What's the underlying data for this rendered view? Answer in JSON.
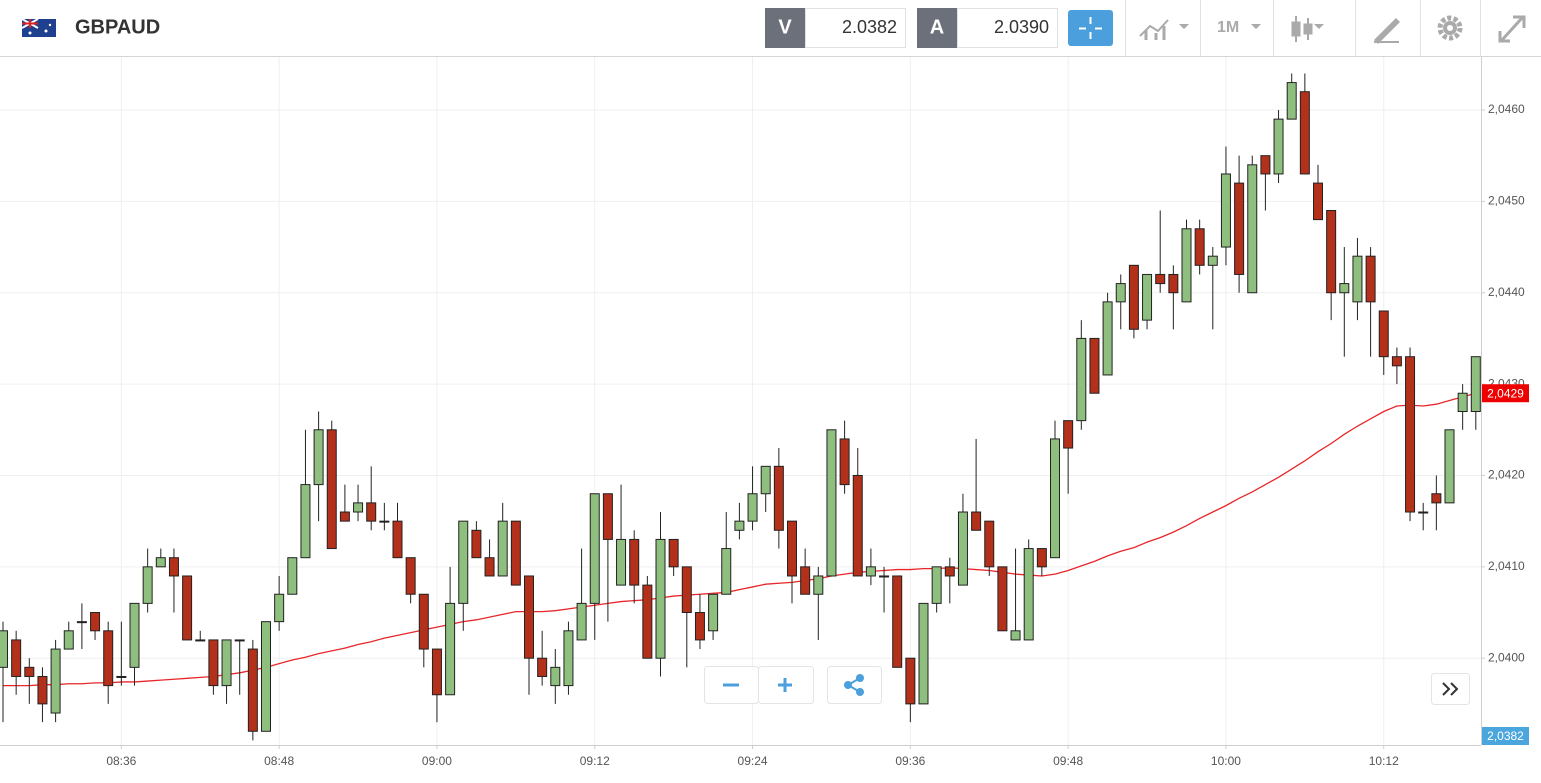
{
  "header": {
    "symbol": "GBPAUD",
    "sell_label": "V",
    "sell_price": "2.0382",
    "buy_label": "A",
    "buy_price": "2.0390",
    "timeframe": "1M"
  },
  "chart_data": {
    "type": "candlestick",
    "categories": [
      null,
      null,
      null,
      null,
      null,
      null,
      null,
      null,
      null,
      "08:36",
      null,
      null,
      null,
      null,
      null,
      null,
      null,
      null,
      null,
      null,
      null,
      "08:48",
      null,
      null,
      null,
      null,
      null,
      null,
      null,
      null,
      null,
      null,
      null,
      "09:00",
      null,
      null,
      null,
      null,
      null,
      null,
      null,
      null,
      null,
      null,
      null,
      "09:12",
      null,
      null,
      null,
      null,
      null,
      null,
      null,
      null,
      null,
      null,
      null,
      "09:24",
      null,
      null,
      null,
      null,
      null,
      null,
      null,
      null,
      null,
      null,
      null,
      "09:36",
      null,
      null,
      null,
      null,
      null,
      null,
      null,
      null,
      null,
      null,
      null,
      "09:48",
      null,
      null,
      null,
      null,
      null,
      null,
      null,
      null,
      null,
      null,
      null,
      "10:00",
      null,
      null,
      null,
      null,
      null,
      null,
      null,
      null,
      null,
      null,
      null,
      "10:12",
      null,
      null,
      null,
      null,
      null,
      null,
      null
    ],
    "open": [
      2.0399,
      2.0402,
      2.0399,
      2.0398,
      2.0394,
      2.0401,
      2.0404,
      2.0405,
      2.0403,
      2.0398,
      2.0399,
      2.0406,
      2.041,
      2.0411,
      2.0409,
      2.0402,
      2.0402,
      2.0397,
      2.0402,
      2.0401,
      2.0392,
      2.0404,
      2.0407,
      2.0411,
      2.0419,
      2.0425,
      2.0416,
      2.0416,
      2.0417,
      2.0415,
      2.0415,
      2.0411,
      2.0407,
      2.0401,
      2.0396,
      2.0406,
      2.0414,
      2.0411,
      2.0409,
      2.0415,
      2.0409,
      2.04,
      2.0397,
      2.0397,
      2.0402,
      2.0406,
      2.0418,
      2.0408,
      2.0413,
      2.0408,
      2.04,
      2.0413,
      2.041,
      2.0405,
      2.0403,
      2.0407,
      2.0414,
      2.0415,
      2.0418,
      2.0421,
      2.0415,
      2.041,
      2.0407,
      2.0409,
      2.0424,
      2.042,
      2.0409,
      2.0409,
      2.0409,
      2.04,
      2.0395,
      2.0406,
      2.041,
      2.0408,
      2.0416,
      2.0415,
      2.041,
      2.0402,
      2.0402,
      2.0412,
      2.0411,
      2.0426,
      2.0426,
      2.0435,
      2.0431,
      2.0439,
      2.0443,
      2.0437,
      2.0442,
      2.0442,
      2.0439,
      2.0447,
      2.0443,
      2.0445,
      2.0452,
      2.044,
      2.0455,
      2.0453,
      2.0459,
      2.0462,
      2.0452,
      2.0449,
      2.044,
      2.0439,
      2.0444,
      2.0438,
      2.0433,
      2.0433,
      2.0416,
      2.0418,
      2.0417,
      2.0427,
      2.0427
    ],
    "high": [
      2.0404,
      2.0403,
      2.04,
      2.0399,
      2.0402,
      2.0404,
      2.0406,
      2.0405,
      2.0404,
      2.0404,
      2.0406,
      2.0412,
      2.0412,
      2.0412,
      2.0409,
      2.0403,
      2.0402,
      2.0402,
      2.0402,
      2.0402,
      2.0404,
      2.0409,
      2.0411,
      2.0425,
      2.0427,
      2.0426,
      2.0419,
      2.0419,
      2.0421,
      2.0417,
      2.0417,
      2.0411,
      2.0407,
      2.0401,
      2.041,
      2.0415,
      2.0415,
      2.0413,
      2.0417,
      2.0415,
      2.0409,
      2.0403,
      2.0401,
      2.0404,
      2.0412,
      2.0418,
      2.0418,
      2.0419,
      2.0414,
      2.0409,
      2.0416,
      2.0413,
      2.041,
      2.0407,
      2.0407,
      2.0416,
      2.0417,
      2.0421,
      2.0421,
      2.0423,
      2.0415,
      2.0412,
      2.041,
      2.0425,
      2.0426,
      2.0423,
      2.0412,
      2.041,
      2.0409,
      2.04,
      2.0406,
      2.041,
      2.0411,
      2.0418,
      2.0424,
      2.0415,
      2.041,
      2.0412,
      2.0413,
      2.0412,
      2.0426,
      2.0426,
      2.0437,
      2.0435,
      2.044,
      2.0442,
      2.0443,
      2.0442,
      2.0449,
      2.0443,
      2.0448,
      2.0448,
      2.0445,
      2.0456,
      2.0455,
      2.0455,
      2.0455,
      2.046,
      2.0464,
      2.0464,
      2.0454,
      2.0449,
      2.0445,
      2.0446,
      2.0445,
      2.0438,
      2.0434,
      2.0434,
      2.0417,
      2.042,
      2.0425,
      2.043,
      2.0433
    ],
    "low": [
      2.0393,
      2.0396,
      2.0395,
      2.0393,
      2.0393,
      2.0401,
      2.0401,
      2.0402,
      2.0395,
      2.0397,
      2.0397,
      2.0405,
      2.041,
      2.0405,
      2.0402,
      2.0402,
      2.0396,
      2.0395,
      2.0396,
      2.0391,
      2.0392,
      2.0403,
      2.0407,
      2.0411,
      2.0415,
      2.0412,
      2.0415,
      2.0415,
      2.0414,
      2.0414,
      2.0411,
      2.0406,
      2.0399,
      2.0393,
      2.0396,
      2.0403,
      2.0411,
      2.0409,
      2.0409,
      2.0408,
      2.0396,
      2.0397,
      2.0395,
      2.0396,
      2.0402,
      2.0402,
      2.0404,
      2.0408,
      2.0406,
      2.04,
      2.0398,
      2.0409,
      2.0399,
      2.0401,
      2.0402,
      2.0407,
      2.0413,
      2.0414,
      2.0416,
      2.0412,
      2.0406,
      2.0407,
      2.0402,
      2.0409,
      2.0418,
      2.0409,
      2.0408,
      2.0405,
      2.0399,
      2.0393,
      2.0395,
      2.0405,
      2.0406,
      2.0408,
      2.0414,
      2.0409,
      2.0403,
      2.0402,
      2.0402,
      2.0409,
      2.0411,
      2.0418,
      2.0425,
      2.0429,
      2.0431,
      2.0436,
      2.0435,
      2.0436,
      2.044,
      2.0436,
      2.0439,
      2.0442,
      2.0436,
      2.0443,
      2.044,
      2.044,
      2.0449,
      2.0452,
      2.0459,
      2.0453,
      2.0448,
      2.0437,
      2.0433,
      2.0437,
      2.0433,
      2.0431,
      2.043,
      2.0415,
      2.0414,
      2.0414,
      2.0417,
      2.0425,
      2.0425
    ],
    "close": [
      2.0403,
      2.0398,
      2.0398,
      2.0395,
      2.0401,
      2.0403,
      2.0404,
      2.0403,
      2.0397,
      2.0398,
      2.0406,
      2.041,
      2.0411,
      2.0409,
      2.0402,
      2.0402,
      2.0397,
      2.0402,
      2.0402,
      2.0392,
      2.0404,
      2.0407,
      2.0411,
      2.0419,
      2.0425,
      2.0412,
      2.0415,
      2.0417,
      2.0415,
      2.0415,
      2.0411,
      2.0407,
      2.0401,
      2.0396,
      2.0406,
      2.0415,
      2.0411,
      2.0409,
      2.0415,
      2.0408,
      2.04,
      2.0398,
      2.0399,
      2.0403,
      2.0406,
      2.0418,
      2.0413,
      2.0413,
      2.0408,
      2.04,
      2.0413,
      2.041,
      2.0405,
      2.0402,
      2.0407,
      2.0412,
      2.0415,
      2.0418,
      2.0421,
      2.0414,
      2.0409,
      2.0407,
      2.0409,
      2.0425,
      2.0419,
      2.0409,
      2.041,
      2.0409,
      2.0399,
      2.0395,
      2.0406,
      2.041,
      2.0409,
      2.0416,
      2.0414,
      2.041,
      2.0403,
      2.0403,
      2.0412,
      2.041,
      2.0424,
      2.0423,
      2.0435,
      2.0429,
      2.0439,
      2.0441,
      2.0436,
      2.0442,
      2.0441,
      2.044,
      2.0447,
      2.0443,
      2.0444,
      2.0453,
      2.0442,
      2.0454,
      2.0453,
      2.0459,
      2.0463,
      2.0453,
      2.0448,
      2.044,
      2.0441,
      2.0444,
      2.0439,
      2.0433,
      2.0432,
      2.0416,
      2.0416,
      2.0417,
      2.0425,
      2.0429,
      2.0433
    ],
    "up_color": "#8fbf7f",
    "down_color": "#b3301a",
    "moving_average": {
      "color": "#e8262a",
      "values": [
        2.0397,
        2.0397,
        2.0397,
        2.03971,
        2.03971,
        2.03972,
        2.03972,
        2.03973,
        2.03973,
        2.03974,
        2.03974,
        2.03975,
        2.03976,
        2.03977,
        2.03978,
        2.03979,
        2.0398,
        2.03982,
        2.03984,
        2.03987,
        2.0399,
        2.03994,
        2.03998,
        2.04001,
        2.04005,
        2.04008,
        2.04011,
        2.04015,
        2.04018,
        2.04022,
        2.04025,
        2.04028,
        2.04031,
        2.04034,
        2.04037,
        2.0404,
        2.04042,
        2.04045,
        2.04048,
        2.04051,
        2.04051,
        2.04051,
        2.04052,
        2.04054,
        2.04056,
        2.04058,
        2.0406,
        2.04062,
        2.04063,
        2.04064,
        2.04066,
        2.04068,
        2.04069,
        2.0407,
        2.04071,
        2.04072,
        2.04075,
        2.04078,
        2.04081,
        2.04082,
        2.04083,
        2.04085,
        2.04087,
        2.0409,
        2.04092,
        2.04094,
        2.04095,
        2.04096,
        2.04097,
        2.04097,
        2.04098,
        2.04098,
        2.04099,
        2.04098,
        2.04097,
        2.04096,
        2.04094,
        2.04092,
        2.04091,
        2.0409,
        2.04092,
        2.04096,
        2.04101,
        2.04106,
        2.04112,
        2.04117,
        2.04121,
        2.04127,
        2.04132,
        2.04138,
        2.04145,
        2.04153,
        2.0416,
        2.04167,
        2.04175,
        2.04182,
        2.0419,
        2.04198,
        2.04207,
        2.04216,
        2.04226,
        2.04235,
        2.04245,
        2.04254,
        2.04262,
        2.0427,
        2.04276,
        2.04277,
        2.04276,
        2.04278,
        2.04282,
        2.04286,
        2.0429
      ]
    },
    "ylim": [
      2.03905,
      2.04658
    ],
    "yticks": [
      {
        "value": 2.04,
        "label": "2,0400"
      },
      {
        "value": 2.041,
        "label": "2,0410"
      },
      {
        "value": 2.042,
        "label": "2,0420"
      },
      {
        "value": 2.043,
        "label": "2,0430"
      },
      {
        "value": 2.044,
        "label": "2,0440"
      },
      {
        "value": 2.045,
        "label": "2,0450"
      },
      {
        "value": 2.046,
        "label": "2,0460"
      }
    ],
    "grid": true,
    "last_price": {
      "value": 2.0429,
      "label": "2,0429",
      "color": "#ee0000"
    },
    "bid_price": {
      "value": 2.0382,
      "label": "2,0382",
      "color": "#4aa6dc"
    }
  }
}
